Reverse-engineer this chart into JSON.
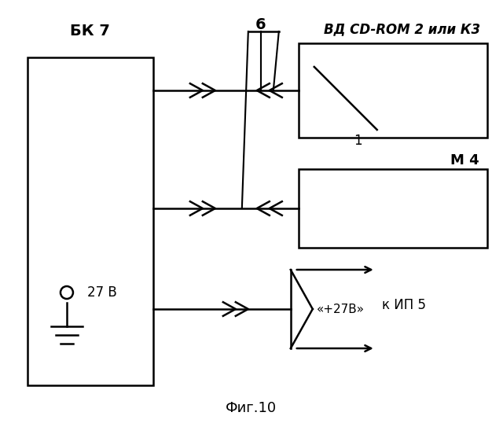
{
  "bg_color": "#ffffff",
  "fig_bg": "#ffffff",
  "title": "Фиг.10",
  "label_bk": "БК 7",
  "label_vd": "ВД CD-ROM 2 или К3",
  "label_m": "М 4",
  "label_6": "6",
  "label_1": "1",
  "label_27v": "27 В",
  "label_plus27v": "«+27В»",
  "label_kip": "к ИП 5",
  "line_color": "#000000",
  "lw": 1.8
}
